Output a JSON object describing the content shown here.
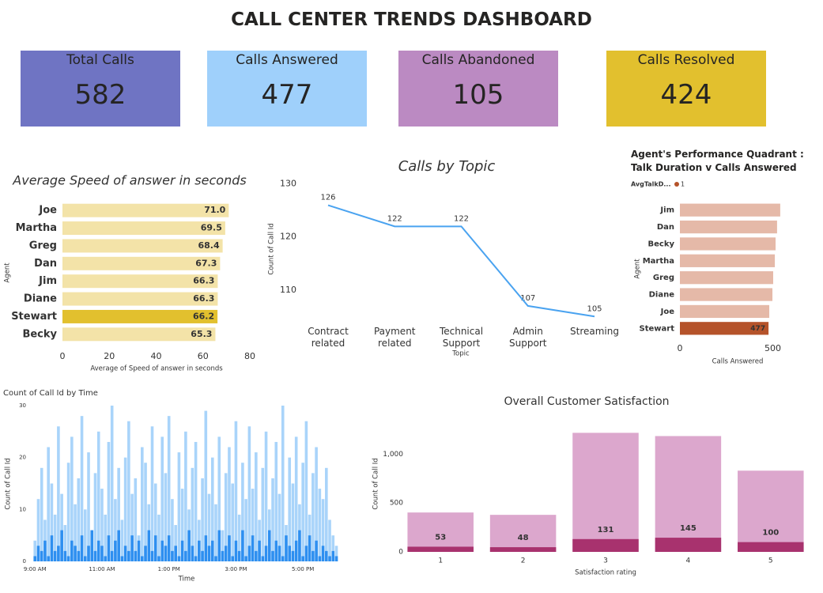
{
  "title": "CALL CENTER TRENDS DASHBOARD",
  "kpis": [
    {
      "label": "Total Calls",
      "value": 582,
      "color": "#6f74c3"
    },
    {
      "label": "Calls Answered",
      "value": 477,
      "color": "#9fd0fb"
    },
    {
      "label": "Calls Abandoned",
      "value": 105,
      "color": "#bb8ac2"
    },
    {
      "label": "Calls Resolved",
      "value": 424,
      "color": "#e2c02e"
    }
  ],
  "chart_data": [
    {
      "type": "hbar",
      "title": "Average Speed of answer in seconds",
      "categories": [
        "Joe",
        "Martha",
        "Greg",
        "Dan",
        "Jim",
        "Diane",
        "Stewart",
        "Becky"
      ],
      "values": [
        71.0,
        69.5,
        68.4,
        67.3,
        66.3,
        66.3,
        66.2,
        65.3
      ],
      "value_labels": [
        "71.0",
        "69.5",
        "68.4",
        "67.3",
        "66.3",
        "66.3",
        "66.2",
        "65.3"
      ],
      "colors": [
        "#f3e3a8",
        "#f3e3a8",
        "#f3e3a8",
        "#f3e3a8",
        "#f3e3a8",
        "#f3e3a8",
        "#e2c02e",
        "#f3e3a8"
      ],
      "xlim": [
        0,
        80
      ],
      "xticks": [
        0,
        20,
        40,
        60,
        80
      ],
      "xlabel": "Average of Speed of answer in seconds",
      "ylabel": "Agent"
    },
    {
      "type": "line",
      "title": "Calls by Topic",
      "categories": [
        "Contract related",
        "Payment related",
        "Technical Support",
        "Admin Support",
        "Streaming"
      ],
      "values": [
        126,
        122,
        122,
        107,
        105
      ],
      "color": "#4aa3f0",
      "ylim": [
        104,
        131
      ],
      "yticks": [
        110,
        120,
        130
      ],
      "xlabel": "Topic",
      "ylabel": "Count of Call Id"
    },
    {
      "type": "hbar",
      "title": "Agent's Performance Quadrant : Talk Duration v Calls Answered",
      "legend": {
        "title": "AvgTalkD...",
        "label": "1",
        "color": "#b5532a"
      },
      "categories": [
        "Jim",
        "Dan",
        "Becky",
        "Martha",
        "Greg",
        "Diane",
        "Joe",
        "Stewart"
      ],
      "values": [
        540,
        523,
        515,
        511,
        502,
        498,
        481,
        477
      ],
      "colors": [
        "#e5b9a8",
        "#e5b9a8",
        "#e5b9a8",
        "#e5b9a8",
        "#e5b9a8",
        "#e5b9a8",
        "#e5b9a8",
        "#b5532a"
      ],
      "show_value_label": [
        false,
        false,
        false,
        false,
        false,
        false,
        false,
        true
      ],
      "xlim": [
        0,
        560
      ],
      "xticks": [
        0,
        500
      ],
      "xlabel": "Calls Answered",
      "ylabel": "Agent"
    },
    {
      "type": "column",
      "title": "Count of Call Id by Time",
      "x": [
        9,
        9.1,
        9.2,
        9.3,
        9.4,
        9.5,
        9.6,
        9.7,
        9.8,
        9.9,
        10,
        10.1,
        10.2,
        10.3,
        10.4,
        10.5,
        10.6,
        10.7,
        10.8,
        10.9,
        11,
        11.1,
        11.2,
        11.3,
        11.4,
        11.5,
        11.6,
        11.7,
        11.8,
        11.9,
        12,
        12.1,
        12.2,
        12.3,
        12.4,
        12.5,
        12.6,
        12.7,
        12.8,
        12.9,
        13,
        13.1,
        13.2,
        13.3,
        13.4,
        13.5,
        13.6,
        13.7,
        13.8,
        13.9,
        14,
        14.1,
        14.2,
        14.3,
        14.4,
        14.5,
        14.6,
        14.7,
        14.8,
        14.9,
        15,
        15.1,
        15.2,
        15.3,
        15.4,
        15.5,
        15.6,
        15.7,
        15.8,
        15.9,
        16,
        16.1,
        16.2,
        16.3,
        16.4,
        16.5,
        16.6,
        16.7,
        16.8,
        16.9,
        17,
        17.1,
        17.2,
        17.3,
        17.4,
        17.5,
        17.6,
        17.7,
        17.8,
        17.9,
        18
      ],
      "series": [
        {
          "color": "#a9d4fa",
          "values": [
            4,
            12,
            18,
            8,
            22,
            15,
            9,
            26,
            13,
            7,
            19,
            24,
            11,
            16,
            28,
            10,
            21,
            6,
            17,
            25,
            14,
            9,
            23,
            30,
            12,
            18,
            8,
            20,
            27,
            13,
            16,
            5,
            22,
            19,
            11,
            26,
            15,
            9,
            24,
            17,
            28,
            12,
            7,
            21,
            14,
            25,
            10,
            18,
            23,
            8,
            16,
            29,
            13,
            20,
            11,
            24,
            6,
            17,
            22,
            15,
            27,
            9,
            19,
            12,
            26,
            14,
            21,
            8,
            18,
            25,
            10,
            16,
            23,
            13,
            30,
            7,
            20,
            15,
            24,
            11,
            19,
            27,
            9,
            17,
            22,
            14,
            12,
            18,
            8,
            5,
            3
          ]
        },
        {
          "color": "#2e8ff0",
          "values": [
            1,
            3,
            2,
            4,
            1,
            5,
            2,
            3,
            6,
            2,
            1,
            4,
            3,
            2,
            5,
            1,
            3,
            6,
            2,
            4,
            3,
            1,
            5,
            2,
            4,
            6,
            1,
            3,
            2,
            5,
            2,
            4,
            1,
            3,
            6,
            2,
            5,
            1,
            4,
            3,
            5,
            2,
            3,
            1,
            4,
            2,
            6,
            3,
            1,
            4,
            2,
            5,
            3,
            4,
            1,
            6,
            2,
            3,
            5,
            1,
            4,
            2,
            6,
            1,
            3,
            5,
            2,
            4,
            1,
            3,
            6,
            2,
            4,
            3,
            1,
            5,
            3,
            2,
            4,
            6,
            1,
            3,
            5,
            2,
            4,
            1,
            3,
            2,
            1,
            2,
            1
          ]
        }
      ],
      "xlim": [
        8.9,
        18.2
      ],
      "xticks": [
        {
          "value": 9,
          "label": "9:00 AM"
        },
        {
          "value": 11,
          "label": "11:00 AM"
        },
        {
          "value": 13,
          "label": "1:00 PM"
        },
        {
          "value": 15,
          "label": "3:00 PM"
        },
        {
          "value": 17,
          "label": "5:00 PM"
        }
      ],
      "ylim": [
        0,
        30
      ],
      "yticks": [
        0,
        10,
        20,
        30
      ],
      "xlabel": "Time",
      "ylabel": "Count of Call Id"
    },
    {
      "type": "bar",
      "title": "Overall Customer Satisfaction",
      "categories": [
        "1",
        "2",
        "3",
        "4",
        "5"
      ],
      "series": [
        {
          "color": "#dca7cd",
          "values": [
            403,
            379,
            1218,
            1185,
            831
          ],
          "data_labels": false
        },
        {
          "color": "#a8326e",
          "values": [
            53,
            48,
            131,
            145,
            100
          ],
          "data_labels": true
        }
      ],
      "ylim": [
        0,
        1270
      ],
      "yticks": [
        0,
        500,
        {
          "value": 1000,
          "label": "1,000"
        }
      ],
      "xlabel": "Satisfaction rating",
      "ylabel": "Count of Call Id"
    }
  ]
}
